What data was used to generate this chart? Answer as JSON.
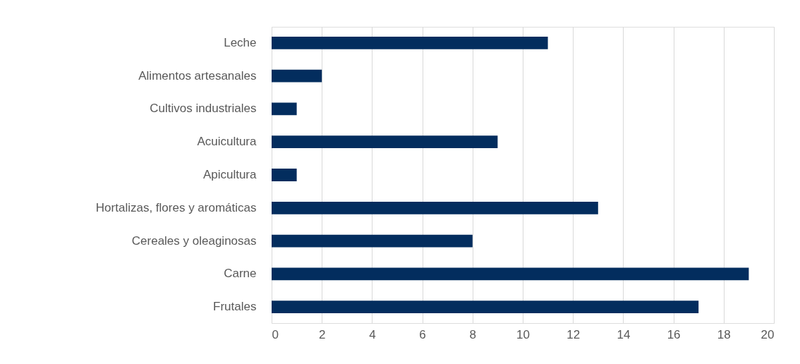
{
  "chart_data": {
    "type": "bar",
    "orientation": "horizontal",
    "categories": [
      "Leche",
      "Alimentos artesanales",
      "Cultivos industriales",
      "Acuicultura",
      "Apicultura",
      "Hortalizas, flores y aromáticas",
      "Cereales y oleaginosas",
      "Carne",
      "Frutales"
    ],
    "values": [
      11,
      2,
      1,
      9,
      1,
      13,
      8,
      19,
      17
    ],
    "color": "#032d5e",
    "xlim": [
      0,
      20
    ],
    "xticks": [
      0,
      2,
      4,
      6,
      8,
      10,
      12,
      14,
      16,
      18,
      20
    ],
    "grid": "x"
  }
}
